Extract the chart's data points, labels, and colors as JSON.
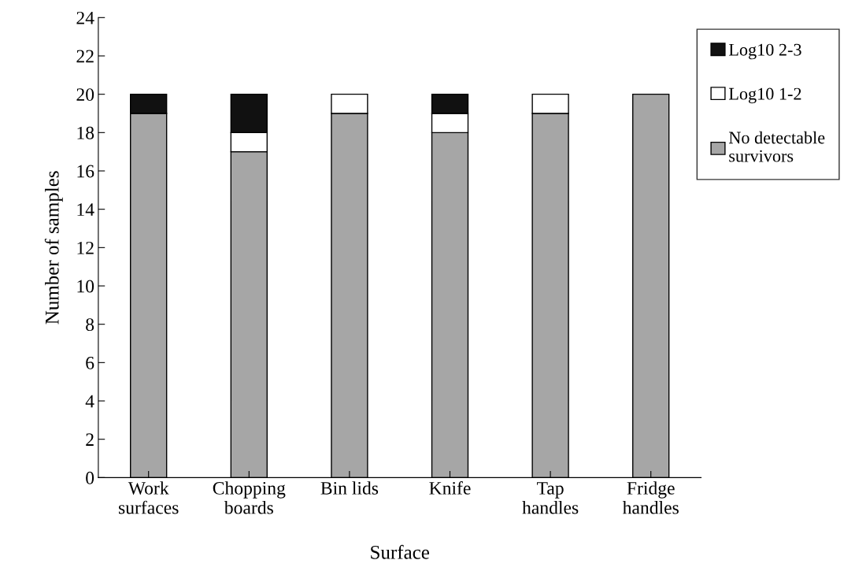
{
  "chart_data": {
    "type": "bar",
    "stacked": true,
    "xlabel": "Surface",
    "ylabel": "Number of samples",
    "categories": [
      "Work\nsurfaces",
      "Chopping\nboards",
      "Bin lids",
      "Knife",
      "Tap\nhandles",
      "Fridge\nhandles"
    ],
    "series": [
      {
        "name": "No detectable\nsurvivors",
        "color": "#a6a6a6",
        "values": [
          19,
          17,
          19,
          18,
          19,
          20
        ]
      },
      {
        "name": "Log10 1-2",
        "color": "#ffffff",
        "values": [
          0,
          1,
          1,
          1,
          1,
          0
        ]
      },
      {
        "name": "Log10 2-3",
        "color": "#111111",
        "values": [
          1,
          2,
          0,
          1,
          0,
          0
        ]
      }
    ],
    "ylim": [
      0,
      24
    ],
    "yticks": [
      0,
      2,
      4,
      6,
      8,
      10,
      12,
      14,
      16,
      18,
      20,
      22,
      24
    ],
    "grid": false,
    "legend": "top right"
  }
}
